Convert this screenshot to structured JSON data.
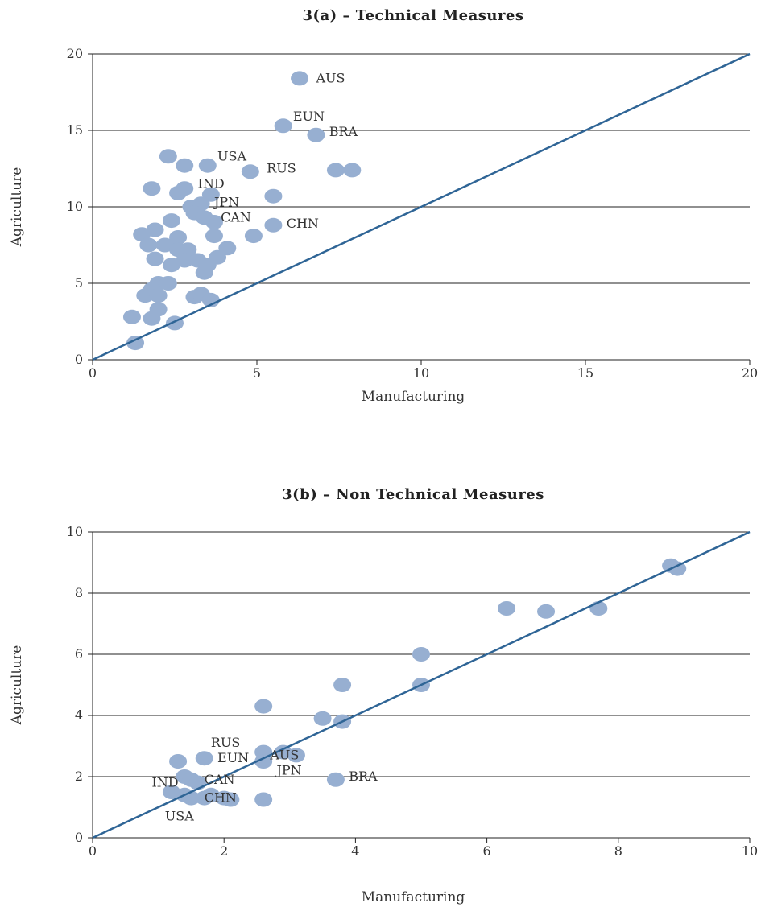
{
  "colors": {
    "point": "#97afd1",
    "line": "#2f6596",
    "grid": "#222222"
  },
  "chart_data": [
    {
      "type": "scatter",
      "title": "3(a) – Technical Measures",
      "xlabel": "Manufacturing",
      "ylabel": "Agriculture",
      "xlim": [
        0,
        20
      ],
      "ylim": [
        0,
        20
      ],
      "xticks": [
        "0",
        "5",
        "10",
        "15",
        "20"
      ],
      "yticks": [
        "0",
        "5",
        "10",
        "15",
        "20"
      ],
      "grid": "horizontal",
      "reference_line": [
        [
          0,
          0
        ],
        [
          20,
          20
        ]
      ],
      "points": [
        {
          "x": 6.3,
          "y": 18.4
        },
        {
          "x": 5.8,
          "y": 15.3
        },
        {
          "x": 6.8,
          "y": 14.7
        },
        {
          "x": 3.5,
          "y": 12.7
        },
        {
          "x": 4.8,
          "y": 12.3
        },
        {
          "x": 7.4,
          "y": 12.4
        },
        {
          "x": 7.9,
          "y": 12.4
        },
        {
          "x": 2.3,
          "y": 13.3
        },
        {
          "x": 2.8,
          "y": 12.7
        },
        {
          "x": 1.8,
          "y": 11.2
        },
        {
          "x": 2.6,
          "y": 10.9
        },
        {
          "x": 2.8,
          "y": 11.2
        },
        {
          "x": 3.6,
          "y": 10.8
        },
        {
          "x": 5.5,
          "y": 10.7
        },
        {
          "x": 3.0,
          "y": 10.0
        },
        {
          "x": 3.3,
          "y": 10.2
        },
        {
          "x": 3.1,
          "y": 9.6
        },
        {
          "x": 3.4,
          "y": 9.3
        },
        {
          "x": 3.7,
          "y": 9.0
        },
        {
          "x": 2.4,
          "y": 9.1
        },
        {
          "x": 5.5,
          "y": 8.8
        },
        {
          "x": 1.9,
          "y": 8.5
        },
        {
          "x": 1.5,
          "y": 8.2
        },
        {
          "x": 2.6,
          "y": 8.0
        },
        {
          "x": 3.7,
          "y": 8.1
        },
        {
          "x": 4.9,
          "y": 8.1
        },
        {
          "x": 1.7,
          "y": 7.5
        },
        {
          "x": 2.2,
          "y": 7.5
        },
        {
          "x": 2.6,
          "y": 7.2
        },
        {
          "x": 2.9,
          "y": 7.2
        },
        {
          "x": 4.1,
          "y": 7.3
        },
        {
          "x": 1.9,
          "y": 6.6
        },
        {
          "x": 2.4,
          "y": 6.2
        },
        {
          "x": 2.8,
          "y": 6.5
        },
        {
          "x": 3.2,
          "y": 6.5
        },
        {
          "x": 3.5,
          "y": 6.2
        },
        {
          "x": 3.8,
          "y": 6.7
        },
        {
          "x": 3.4,
          "y": 5.7
        },
        {
          "x": 2.0,
          "y": 5.0
        },
        {
          "x": 2.3,
          "y": 5.0
        },
        {
          "x": 1.8,
          "y": 4.6
        },
        {
          "x": 1.6,
          "y": 4.2
        },
        {
          "x": 2.0,
          "y": 4.2
        },
        {
          "x": 3.1,
          "y": 4.1
        },
        {
          "x": 3.3,
          "y": 4.3
        },
        {
          "x": 3.6,
          "y": 3.9
        },
        {
          "x": 2.0,
          "y": 3.3
        },
        {
          "x": 1.2,
          "y": 2.8
        },
        {
          "x": 1.8,
          "y": 2.7
        },
        {
          "x": 2.5,
          "y": 2.4
        },
        {
          "x": 1.3,
          "y": 1.1
        }
      ],
      "annotations": [
        {
          "text": "AUS",
          "x": 6.8,
          "y": 18.4
        },
        {
          "text": "EUN",
          "x": 6.1,
          "y": 15.9
        },
        {
          "text": "BRA",
          "x": 7.2,
          "y": 14.9
        },
        {
          "text": "USA",
          "x": 3.8,
          "y": 13.3
        },
        {
          "text": "RUS",
          "x": 5.3,
          "y": 12.5
        },
        {
          "text": "IND",
          "x": 3.2,
          "y": 11.5
        },
        {
          "text": "JPN",
          "x": 3.7,
          "y": 10.3
        },
        {
          "text": "CAN",
          "x": 3.9,
          "y": 9.3
        },
        {
          "text": "CHN",
          "x": 5.9,
          "y": 8.9
        }
      ]
    },
    {
      "type": "scatter",
      "title": "3(b) – Non Technical Measures",
      "xlabel": "Manufacturing",
      "ylabel": "Agriculture",
      "xlim": [
        0,
        10
      ],
      "ylim": [
        0,
        10
      ],
      "xticks": [
        "0",
        "2",
        "4",
        "6",
        "8",
        "10"
      ],
      "yticks": [
        "0",
        "2",
        "4",
        "6",
        "8",
        "10"
      ],
      "grid": "horizontal",
      "reference_line": [
        [
          0,
          0
        ],
        [
          10,
          10
        ]
      ],
      "points": [
        {
          "x": 8.8,
          "y": 8.9
        },
        {
          "x": 8.9,
          "y": 8.8
        },
        {
          "x": 6.3,
          "y": 7.5
        },
        {
          "x": 6.9,
          "y": 7.4
        },
        {
          "x": 7.7,
          "y": 7.5
        },
        {
          "x": 5.0,
          "y": 6.0
        },
        {
          "x": 3.8,
          "y": 5.0
        },
        {
          "x": 5.0,
          "y": 5.0
        },
        {
          "x": 2.6,
          "y": 4.3
        },
        {
          "x": 3.5,
          "y": 3.9
        },
        {
          "x": 3.8,
          "y": 3.8
        },
        {
          "x": 2.6,
          "y": 2.8
        },
        {
          "x": 2.9,
          "y": 2.8
        },
        {
          "x": 3.1,
          "y": 2.7
        },
        {
          "x": 2.6,
          "y": 2.5
        },
        {
          "x": 1.7,
          "y": 2.6
        },
        {
          "x": 1.3,
          "y": 2.5
        },
        {
          "x": 1.4,
          "y": 2.0
        },
        {
          "x": 1.5,
          "y": 1.9
        },
        {
          "x": 1.6,
          "y": 1.8
        },
        {
          "x": 3.7,
          "y": 1.9
        },
        {
          "x": 1.2,
          "y": 1.5
        },
        {
          "x": 1.4,
          "y": 1.4
        },
        {
          "x": 1.8,
          "y": 1.4
        },
        {
          "x": 2.0,
          "y": 1.3
        },
        {
          "x": 1.5,
          "y": 1.3
        },
        {
          "x": 1.7,
          "y": 1.3
        },
        {
          "x": 2.1,
          "y": 1.25
        },
        {
          "x": 2.6,
          "y": 1.25
        }
      ],
      "annotations": [
        {
          "text": "RUS",
          "x": 1.8,
          "y": 3.1
        },
        {
          "text": "EUN",
          "x": 1.9,
          "y": 2.6
        },
        {
          "text": "AUS",
          "x": 2.7,
          "y": 2.7
        },
        {
          "text": "JPN",
          "x": 2.8,
          "y": 2.2
        },
        {
          "text": "BRA",
          "x": 3.9,
          "y": 2.0
        },
        {
          "text": "IND",
          "x": 0.9,
          "y": 1.8
        },
        {
          "text": "CAN",
          "x": 1.7,
          "y": 1.9
        },
        {
          "text": "CHN",
          "x": 1.7,
          "y": 1.3
        },
        {
          "text": "USA",
          "x": 1.1,
          "y": 0.7
        }
      ]
    }
  ]
}
